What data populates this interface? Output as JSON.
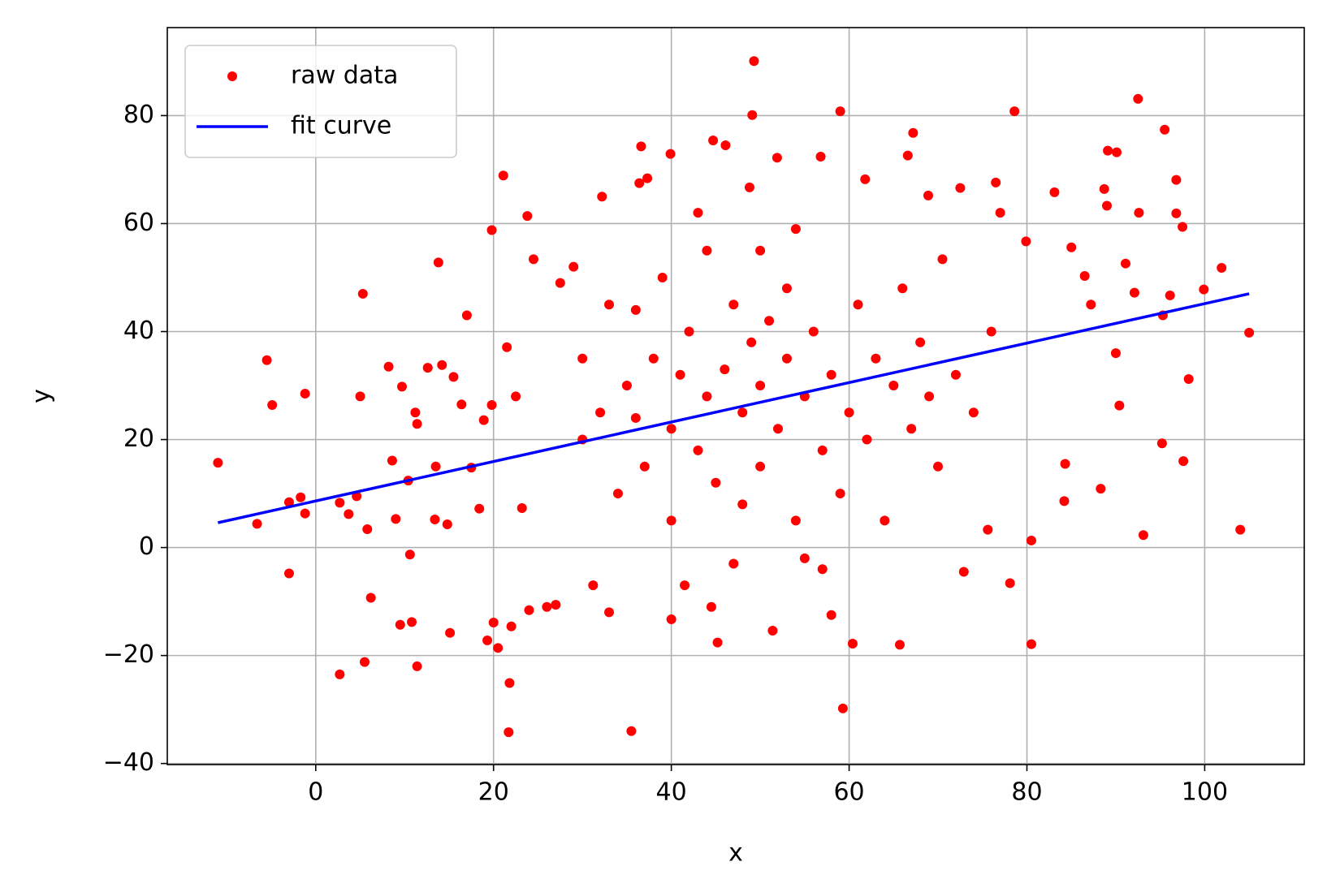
{
  "chart_data": {
    "type": "scatter",
    "x_label": "x",
    "y_label": "y",
    "xlim": [
      -16.7,
      111.2
    ],
    "ylim": [
      -40.2,
      96.3
    ],
    "xticks": [
      0,
      20,
      40,
      60,
      80,
      100
    ],
    "yticks": [
      {
        "value": -40,
        "label": "−40"
      },
      {
        "value": -20,
        "label": "−20"
      },
      0,
      20,
      40,
      60,
      80
    ],
    "grid": true,
    "legend": "upper left",
    "series": [
      {
        "name": "raw data",
        "color": "#ff0000",
        "style": "marker",
        "x": [
          -11,
          -6.6,
          -5.5,
          -4.9,
          -3,
          -3,
          -1.7,
          -1.2,
          -1.2,
          2.7,
          2.7,
          3.7,
          4.6,
          5,
          5.3,
          5.5,
          5.8,
          6.2,
          8.2,
          8.6,
          9,
          9.5,
          9.7,
          10.4,
          10.6,
          10.8,
          11.2,
          11.4,
          11.4,
          12.6,
          13.5,
          13.8,
          13.4,
          14.2,
          14.8,
          15.1,
          15.5,
          16.4,
          17,
          17.5,
          18.4,
          18.9,
          19.3,
          19.8,
          19.8,
          20,
          20.5,
          21.1,
          21.5,
          21.7,
          21.8,
          22,
          22.5,
          23.2,
          23.8,
          24,
          24.5,
          26,
          27,
          27.5,
          29,
          30,
          31.2,
          32.2,
          33,
          35.5,
          36,
          36.4,
          36.6,
          37.3,
          39.9,
          40,
          41.5,
          43,
          44.5,
          44.7,
          45.2,
          46.1,
          48.8,
          49.1,
          49.3,
          50,
          51.4,
          51.9,
          54,
          56.8,
          57,
          58,
          59,
          59.3,
          60.4,
          61.8,
          65.7,
          66.6,
          67.2,
          68.9,
          70.5,
          72.5,
          72.9,
          75.6,
          76.5,
          77,
          78.1,
          78.6,
          79.9,
          80.5,
          80.5,
          83.1,
          84.2,
          84.3,
          85,
          86.5,
          87.2,
          88.3,
          88.7,
          89.1,
          89,
          90.1,
          90.4,
          91.1,
          92.1,
          92.5,
          92.6,
          93.1,
          95.2,
          95.5,
          96.1,
          96.8,
          96.8,
          97.5,
          97.6,
          98.2,
          99.9,
          101.9,
          104,
          105,
          95.3,
          90,
          30,
          32,
          34,
          35,
          37,
          38,
          40,
          40,
          42,
          43,
          44,
          45,
          46,
          47,
          48,
          48,
          49,
          50,
          50,
          51,
          52,
          53,
          54,
          55,
          56,
          57,
          58,
          59,
          60,
          61,
          62,
          63,
          64,
          65,
          66,
          67,
          68,
          69,
          70,
          72,
          74,
          76,
          33,
          39,
          44,
          53,
          47,
          55,
          41,
          36
        ],
        "values": [
          15.7,
          4.4,
          34.7,
          26.4,
          8.4,
          -4.8,
          9.3,
          28.5,
          6.3,
          -23.5,
          8.3,
          6.2,
          9.5,
          28,
          47,
          -21.2,
          3.4,
          -9.3,
          33.5,
          16.1,
          5.3,
          -14.3,
          29.8,
          12.4,
          -1.3,
          -13.8,
          25,
          -22,
          22.9,
          33.3,
          15,
          52.8,
          5.2,
          33.8,
          4.3,
          -15.8,
          31.6,
          26.5,
          43,
          14.8,
          7.2,
          23.6,
          -17.2,
          26.4,
          58.8,
          -13.9,
          -18.6,
          68.9,
          37.1,
          -34.2,
          -25.1,
          -14.6,
          28,
          7.3,
          61.4,
          -11.6,
          53.4,
          -11,
          -10.6,
          49,
          52,
          35,
          -7,
          65,
          -12,
          -34,
          44,
          67.5,
          74.3,
          68.4,
          72.9,
          -13.3,
          -7,
          62,
          -11,
          75.4,
          -17.6,
          74.5,
          66.7,
          80.1,
          90.1,
          55,
          -15.4,
          72.2,
          59,
          72.4,
          -4,
          -12.5,
          80.8,
          -29.8,
          -17.8,
          68.2,
          -18,
          72.6,
          76.8,
          65.2,
          53.4,
          66.6,
          -4.5,
          3.3,
          67.6,
          62,
          -6.6,
          80.8,
          56.7,
          -17.9,
          1.3,
          65.8,
          8.6,
          15.5,
          55.6,
          50.3,
          45,
          10.9,
          66.4,
          73.5,
          63.3,
          73.2,
          26.3,
          52.6,
          47.2,
          83.1,
          62,
          2.3,
          19.3,
          77.4,
          46.7,
          68.1,
          61.9,
          59.4,
          16,
          31.2,
          47.8,
          51.8,
          3.3,
          39.8,
          43,
          36,
          20,
          25,
          10,
          30,
          15,
          35,
          22,
          5,
          40,
          18,
          28,
          12,
          33,
          45,
          25,
          8,
          38,
          30,
          15,
          42,
          22,
          35,
          5,
          28,
          40,
          18,
          32,
          10,
          25,
          45,
          20,
          35,
          5,
          30,
          48,
          22,
          38,
          28,
          15,
          32,
          25,
          40,
          45,
          50,
          55,
          48,
          -3,
          -2,
          32,
          24
        ]
      },
      {
        "name": "fit curve",
        "color": "#0000ff",
        "style": "line",
        "x": [
          -11,
          105
        ],
        "values": [
          4.6,
          47
        ]
      }
    ]
  }
}
